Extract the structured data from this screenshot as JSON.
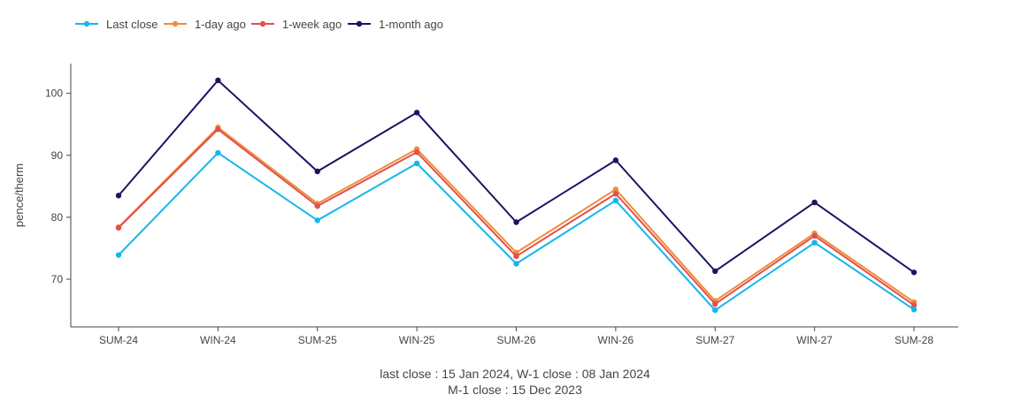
{
  "chart_data": {
    "type": "line",
    "categories": [
      "SUM-24",
      "WIN-24",
      "SUM-25",
      "WIN-25",
      "SUM-26",
      "WIN-26",
      "SUM-27",
      "WIN-27",
      "SUM-28"
    ],
    "ylabel": "pence/therm",
    "xlabel": "",
    "ylim": [
      62.3,
      104.8
    ],
    "yticks": [
      70,
      80,
      90,
      100
    ],
    "grid": false,
    "legend_position": "top-left",
    "series": [
      {
        "name": "1-month ago",
        "color": "#1a1464",
        "values": [
          83.5,
          102.1,
          87.4,
          96.9,
          79.2,
          89.2,
          71.3,
          82.4,
          71.1
        ]
      },
      {
        "name": "1-day ago",
        "color": "#f08c3a",
        "values": [
          78.4,
          94.5,
          82.2,
          91.0,
          74.3,
          84.5,
          66.5,
          77.4,
          66.3
        ]
      },
      {
        "name": "1-week ago",
        "color": "#e0514d",
        "values": [
          78.3,
          94.2,
          81.8,
          90.5,
          73.7,
          83.8,
          66.0,
          77.0,
          65.8
        ]
      },
      {
        "name": "Last close",
        "color": "#13b7ea",
        "values": [
          73.9,
          90.4,
          79.5,
          88.7,
          72.5,
          82.7,
          65.0,
          75.9,
          65.1
        ]
      }
    ],
    "legend_order": [
      "Last close",
      "1-day ago",
      "1-week ago",
      "1-month ago"
    ],
    "footnote": [
      "last close : 15 Jan 2024, W-1 close : 08 Jan 2024",
      "M-1 close : 15 Dec 2023"
    ]
  }
}
